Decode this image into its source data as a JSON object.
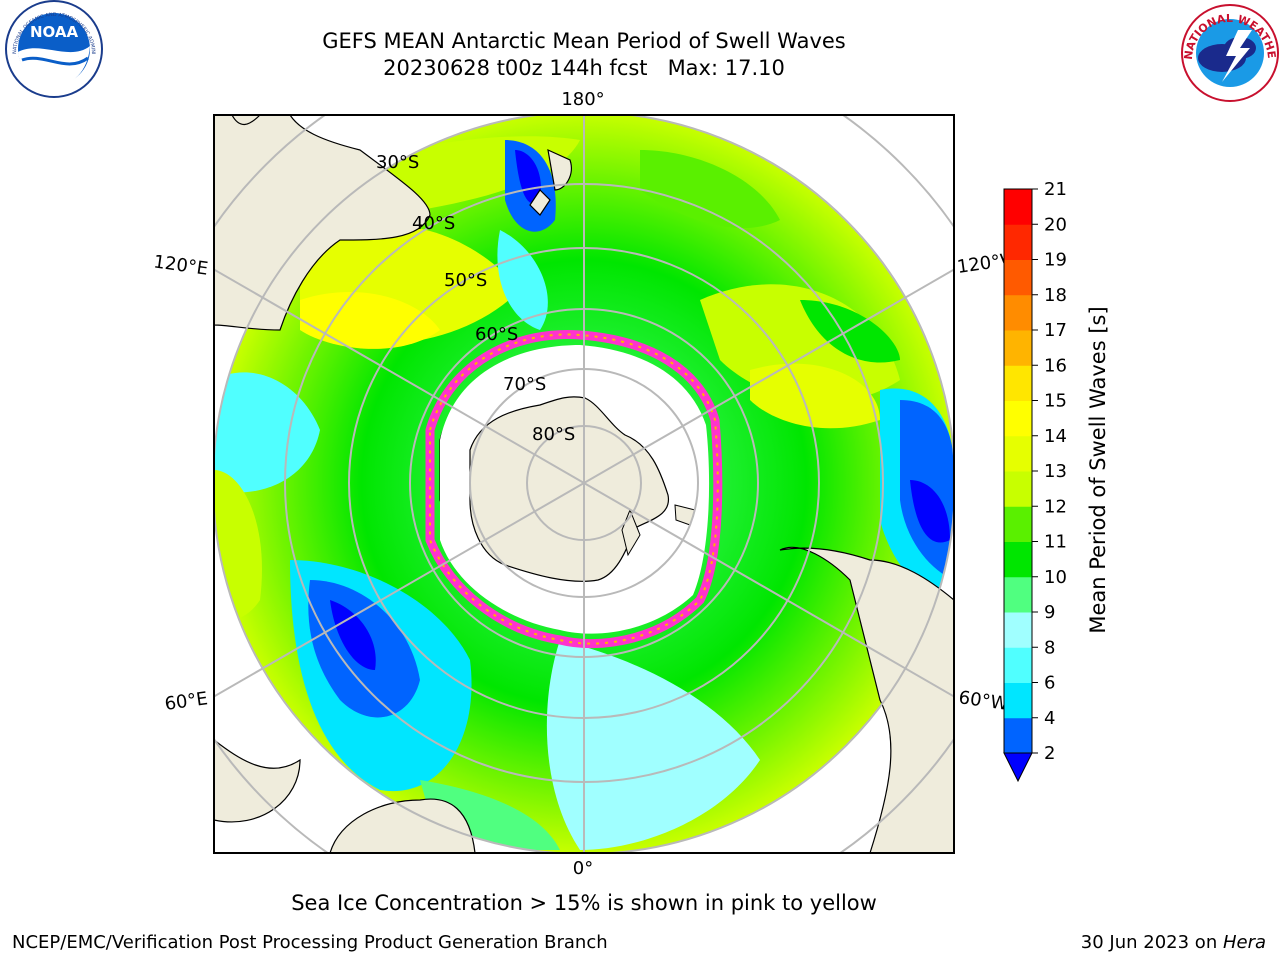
{
  "header": {
    "title_line1": "GEFS MEAN Antarctic Mean Period of Swell Waves",
    "title_line2": "20230628 t00z 144h fcst   Max: 17.10"
  },
  "map": {
    "projection": "south-polar-stereographic",
    "longitude_labels": {
      "top": "180°",
      "bottom": "0°",
      "left_upper": "120°E",
      "left_lower": "60°E",
      "right_upper": "120°W",
      "right_lower": "60°W"
    },
    "latitude_labels": [
      "30°S",
      "40°S",
      "50°S",
      "60°S",
      "70°S",
      "80°S"
    ],
    "land_color": "#efecdc",
    "grid_color": "#b9b9b9"
  },
  "colorbar": {
    "label": "Mean Period of Swell Waves [s]",
    "ticks": [
      "2",
      "4",
      "6",
      "8",
      "9",
      "10",
      "11",
      "12",
      "13",
      "14",
      "15",
      "16",
      "17",
      "18",
      "19",
      "20",
      "21"
    ],
    "colors": [
      "#0064ff",
      "#00e6ff",
      "#50ffff",
      "#a0ffff",
      "#50ff80",
      "#00e600",
      "#5af000",
      "#c8ff00",
      "#e6ff00",
      "#ffff00",
      "#ffe600",
      "#ffb400",
      "#ff8c00",
      "#ff5a00",
      "#ff2800",
      "#ff0000"
    ],
    "under_color": "#0000ff"
  },
  "note": "Sea Ice Concentration > 15% is shown in pink to yellow",
  "footer": {
    "left": "NCEP/EMC/Verification Post Processing Product Generation Branch",
    "right_prefix": "30 Jun 2023 on ",
    "right_host": "Hera"
  },
  "logos": {
    "noaa_text": "NOAA",
    "noaa_ring": "NATIONAL OCEANIC AND ATMOSPHERIC ADMINISTRATION · U.S. DEPARTMENT OF COMMERCE",
    "nws_ring": "NATIONAL WEATHER SERVICE"
  }
}
